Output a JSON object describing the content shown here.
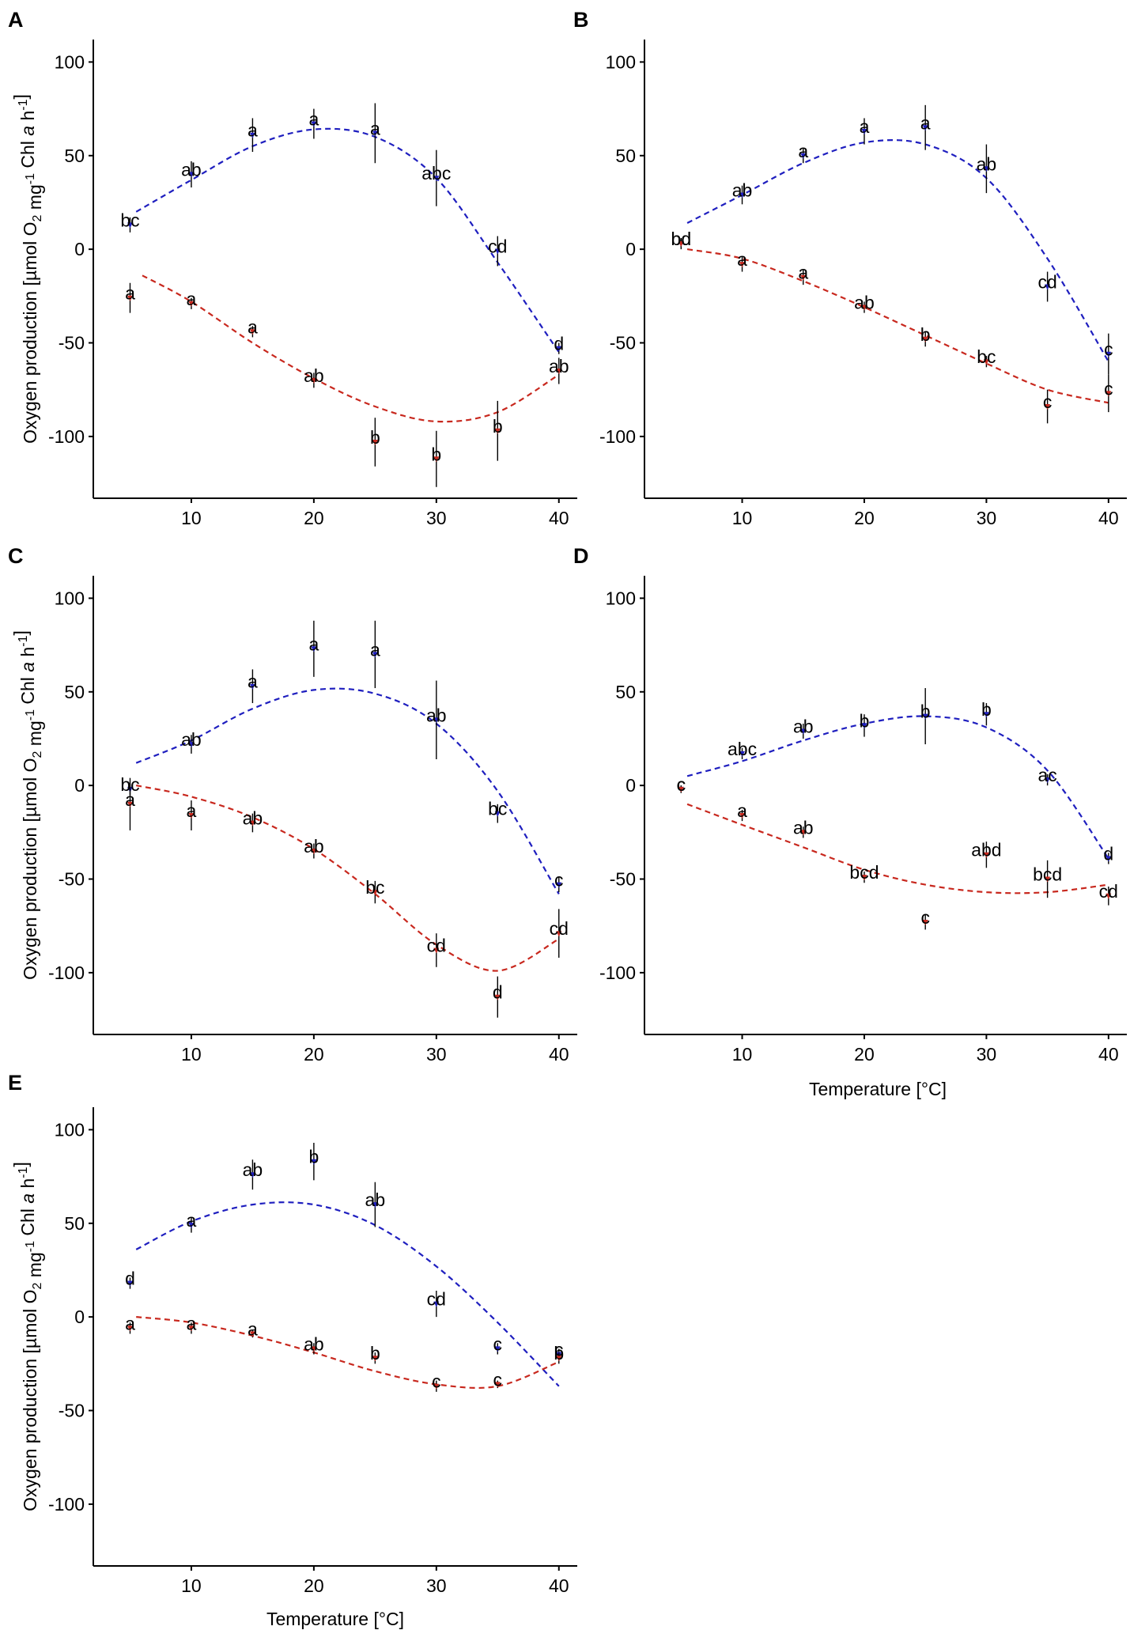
{
  "figure": {
    "x_axis_title": "Temperature [°C]",
    "y_axis_title_parts": {
      "prefix": "Oxygen production [µmol O",
      "o2_subscript": "2",
      "mid": " mg",
      "mg_superscript": "-1",
      "chl": " Chl ",
      "a_italic": "a",
      "h": " h",
      "h_superscript": "-1",
      "suffix": "]"
    },
    "colors": {
      "gross": "#1f1fbf",
      "respiration": "#c8281e",
      "axis": "#000000",
      "errorbar": "#000000"
    }
  },
  "chart_data": [
    {
      "panel": "A",
      "type": "scatter",
      "x_ticks": [
        10,
        20,
        30,
        40
      ],
      "y_ticks": [
        100,
        50,
        0,
        -50,
        -100
      ],
      "xlim": [
        2,
        41.5
      ],
      "ylim": [
        -133,
        112
      ],
      "show_y_title": true,
      "show_x_title": false,
      "series": [
        {
          "name": "upper",
          "color": "#1f1fbf",
          "points": [
            {
              "x": 5,
              "y": 13,
              "err": 4,
              "label": "bc"
            },
            {
              "x": 10,
              "y": 40,
              "err": 7,
              "label": "ab"
            },
            {
              "x": 15,
              "y": 61,
              "err": 9,
              "label": "a"
            },
            {
              "x": 20,
              "y": 67,
              "err": 8,
              "label": "a"
            },
            {
              "x": 25,
              "y": 62,
              "err": 16,
              "label": "a"
            },
            {
              "x": 30,
              "y": 38,
              "err": 15,
              "label": "abc"
            },
            {
              "x": 35,
              "y": -1,
              "err": 8,
              "label": "cd"
            },
            {
              "x": 40,
              "y": -53,
              "err": 3,
              "label": "d"
            }
          ],
          "fit": [
            [
              5.5,
              20
            ],
            [
              10,
              37
            ],
            [
              15,
              55
            ],
            [
              20,
              64
            ],
            [
              25,
              60
            ],
            [
              30,
              38
            ],
            [
              35,
              -7
            ],
            [
              40,
              -55
            ]
          ]
        },
        {
          "name": "lower",
          "color": "#c8281e",
          "points": [
            {
              "x": 5,
              "y": -26,
              "err": 8,
              "label": "a"
            },
            {
              "x": 10,
              "y": -29,
              "err": 3,
              "label": "a"
            },
            {
              "x": 15,
              "y": -44,
              "err": 3,
              "label": "a"
            },
            {
              "x": 20,
              "y": -70,
              "err": 4,
              "label": "ab"
            },
            {
              "x": 25,
              "y": -103,
              "err": 13,
              "label": "b"
            },
            {
              "x": 30,
              "y": -112,
              "err": 15,
              "label": "b"
            },
            {
              "x": 35,
              "y": -97,
              "err": 16,
              "label": "b"
            },
            {
              "x": 40,
              "y": -65,
              "err": 7,
              "label": "ab"
            }
          ],
          "fit": [
            [
              6,
              -14
            ],
            [
              10,
              -28
            ],
            [
              15,
              -50
            ],
            [
              20,
              -69
            ],
            [
              25,
              -84
            ],
            [
              30,
              -92
            ],
            [
              35,
              -87
            ],
            [
              40,
              -67
            ]
          ]
        }
      ]
    },
    {
      "panel": "B",
      "type": "scatter",
      "x_ticks": [
        10,
        20,
        30,
        40
      ],
      "y_ticks": [
        100,
        50,
        0,
        -50,
        -100
      ],
      "xlim": [
        2,
        41.5
      ],
      "ylim": [
        -133,
        112
      ],
      "show_y_title": false,
      "show_x_title": false,
      "series": [
        {
          "name": "upper",
          "color": "#1f1fbf",
          "points": [
            {
              "x": 5,
              "y": 3,
              "err": 3,
              "label": "bd"
            },
            {
              "x": 10,
              "y": 29,
              "err": 5,
              "label": "ab"
            },
            {
              "x": 15,
              "y": 50,
              "err": 4,
              "label": "a"
            },
            {
              "x": 20,
              "y": 63,
              "err": 7,
              "label": "a"
            },
            {
              "x": 25,
              "y": 65,
              "err": 12,
              "label": "a"
            },
            {
              "x": 30,
              "y": 43,
              "err": 13,
              "label": "ab"
            },
            {
              "x": 35,
              "y": -20,
              "err": 8,
              "label": "cd"
            },
            {
              "x": 40,
              "y": -56,
              "err": 11,
              "label": "c"
            }
          ],
          "fit": [
            [
              5.5,
              14
            ],
            [
              10,
              29
            ],
            [
              15,
              46
            ],
            [
              20,
              57
            ],
            [
              25,
              56
            ],
            [
              30,
              38
            ],
            [
              35,
              -5
            ],
            [
              40,
              -60
            ]
          ]
        },
        {
          "name": "lower",
          "color": "#c8281e",
          "points": [
            {
              "x": 5,
              "y": 3,
              "err": 2,
              "label": "bd"
            },
            {
              "x": 10,
              "y": -8,
              "err": 4,
              "label": "a"
            },
            {
              "x": 15,
              "y": -15,
              "err": 4,
              "label": "a"
            },
            {
              "x": 20,
              "y": -31,
              "err": 3,
              "label": "ab"
            },
            {
              "x": 25,
              "y": -48,
              "err": 4,
              "label": "b"
            },
            {
              "x": 30,
              "y": -60,
              "err": 3,
              "label": "bc"
            },
            {
              "x": 35,
              "y": -84,
              "err": 9,
              "label": "c"
            },
            {
              "x": 40,
              "y": -77,
              "err": 10,
              "label": "c"
            }
          ],
          "fit": [
            [
              5.5,
              0
            ],
            [
              10,
              -5
            ],
            [
              15,
              -17
            ],
            [
              20,
              -31
            ],
            [
              25,
              -46
            ],
            [
              30,
              -61
            ],
            [
              35,
              -75
            ],
            [
              40,
              -82
            ]
          ]
        }
      ]
    },
    {
      "panel": "C",
      "type": "scatter",
      "x_ticks": [
        10,
        20,
        30,
        40
      ],
      "y_ticks": [
        100,
        50,
        0,
        -50,
        -100
      ],
      "xlim": [
        2,
        41.5
      ],
      "ylim": [
        -133,
        112
      ],
      "show_y_title": true,
      "show_x_title": false,
      "series": [
        {
          "name": "upper",
          "color": "#1f1fbf",
          "points": [
            {
              "x": 5,
              "y": -2,
              "err": 3,
              "label": "bc"
            },
            {
              "x": 10,
              "y": 22,
              "err": 5,
              "label": "ab"
            },
            {
              "x": 15,
              "y": 53,
              "err": 9,
              "label": "a"
            },
            {
              "x": 20,
              "y": 73,
              "err": 15,
              "label": "a"
            },
            {
              "x": 25,
              "y": 70,
              "err": 18,
              "label": "a"
            },
            {
              "x": 30,
              "y": 35,
              "err": 21,
              "label": "ab"
            },
            {
              "x": 35,
              "y": -15,
              "err": 5,
              "label": "bc"
            },
            {
              "x": 40,
              "y": -53,
              "err": 4,
              "label": "c"
            }
          ],
          "fit": [
            [
              5.5,
              12
            ],
            [
              10,
              24
            ],
            [
              15,
              41
            ],
            [
              20,
              51
            ],
            [
              25,
              49
            ],
            [
              30,
              33
            ],
            [
              35,
              -3
            ],
            [
              40,
              -58
            ]
          ]
        },
        {
          "name": "lower",
          "color": "#c8281e",
          "points": [
            {
              "x": 5,
              "y": -10,
              "err": 14,
              "label": "a"
            },
            {
              "x": 10,
              "y": -16,
              "err": 8,
              "label": "a"
            },
            {
              "x": 15,
              "y": -20,
              "err": 5,
              "label": "ab"
            },
            {
              "x": 20,
              "y": -35,
              "err": 4,
              "label": "ab"
            },
            {
              "x": 25,
              "y": -57,
              "err": 6,
              "label": "bc"
            },
            {
              "x": 30,
              "y": -88,
              "err": 9,
              "label": "cd"
            },
            {
              "x": 35,
              "y": -113,
              "err": 11,
              "label": "d"
            },
            {
              "x": 40,
              "y": -79,
              "err": 13,
              "label": "cd"
            }
          ],
          "fit": [
            [
              5.5,
              0
            ],
            [
              10,
              -6
            ],
            [
              15,
              -17
            ],
            [
              20,
              -34
            ],
            [
              25,
              -58
            ],
            [
              30,
              -85
            ],
            [
              35,
              -99
            ],
            [
              40,
              -82
            ]
          ]
        }
      ]
    },
    {
      "panel": "D",
      "type": "scatter",
      "x_ticks": [
        10,
        20,
        30,
        40
      ],
      "y_ticks": [
        100,
        50,
        0,
        -50,
        -100
      ],
      "xlim": [
        2,
        41.5
      ],
      "ylim": [
        -133,
        112
      ],
      "show_y_title": false,
      "show_x_title": true,
      "series": [
        {
          "name": "upper",
          "color": "#1f1fbf",
          "points": [
            {
              "x": 5,
              "y": -2,
              "err": 2,
              "label": "c"
            },
            {
              "x": 10,
              "y": 17,
              "err": 3,
              "label": "abc"
            },
            {
              "x": 15,
              "y": 29,
              "err": 4,
              "label": "ab"
            },
            {
              "x": 20,
              "y": 32,
              "err": 6,
              "label": "b"
            },
            {
              "x": 25,
              "y": 37,
              "err": 15,
              "label": "b"
            },
            {
              "x": 30,
              "y": 38,
              "err": 6,
              "label": "b"
            },
            {
              "x": 35,
              "y": 3,
              "err": 3,
              "label": "ac"
            },
            {
              "x": 40,
              "y": -39,
              "err": 3,
              "label": "d"
            }
          ],
          "fit": [
            [
              5.5,
              5
            ],
            [
              10,
              13
            ],
            [
              15,
              24
            ],
            [
              20,
              33
            ],
            [
              25,
              37
            ],
            [
              30,
              31
            ],
            [
              35,
              8
            ],
            [
              40,
              -39
            ]
          ]
        },
        {
          "name": "lower",
          "color": "#c8281e",
          "points": [
            {
              "x": 5,
              "y": -2,
              "err": 2,
              "label": "c"
            },
            {
              "x": 10,
              "y": -16,
              "err": 3,
              "label": "a"
            },
            {
              "x": 15,
              "y": -25,
              "err": 3,
              "label": "ab"
            },
            {
              "x": 20,
              "y": -49,
              "err": 3,
              "label": "bcd"
            },
            {
              "x": 25,
              "y": -73,
              "err": 4,
              "label": "c"
            },
            {
              "x": 30,
              "y": -37,
              "err": 7,
              "label": "abd"
            },
            {
              "x": 35,
              "y": -50,
              "err": 10,
              "label": "bcd"
            },
            {
              "x": 40,
              "y": -59,
              "err": 5,
              "label": "cd"
            }
          ],
          "fit": [
            [
              5.5,
              -10
            ],
            [
              10,
              -21
            ],
            [
              15,
              -33
            ],
            [
              20,
              -45
            ],
            [
              25,
              -53
            ],
            [
              30,
              -57
            ],
            [
              35,
              -57
            ],
            [
              40,
              -53
            ]
          ]
        }
      ]
    },
    {
      "panel": "E",
      "type": "scatter",
      "x_ticks": [
        10,
        20,
        30,
        40
      ],
      "y_ticks": [
        100,
        50,
        0,
        -50,
        -100
      ],
      "xlim": [
        2,
        41.5
      ],
      "ylim": [
        -133,
        112
      ],
      "show_y_title": true,
      "show_x_title": true,
      "series": [
        {
          "name": "upper",
          "color": "#1f1fbf",
          "points": [
            {
              "x": 5,
              "y": 18,
              "err": 3,
              "label": "d"
            },
            {
              "x": 10,
              "y": 49,
              "err": 4,
              "label": "a"
            },
            {
              "x": 15,
              "y": 76,
              "err": 8,
              "label": "ab"
            },
            {
              "x": 20,
              "y": 83,
              "err": 10,
              "label": "b"
            },
            {
              "x": 25,
              "y": 60,
              "err": 12,
              "label": "ab"
            },
            {
              "x": 30,
              "y": 7,
              "err": 7,
              "label": "cd"
            },
            {
              "x": 35,
              "y": -17,
              "err": 3,
              "label": "c"
            },
            {
              "x": 40,
              "y": -20,
              "err": 3,
              "label": "c"
            }
          ],
          "fit": [
            [
              5.5,
              36
            ],
            [
              10,
              51
            ],
            [
              15,
              60
            ],
            [
              20,
              60
            ],
            [
              25,
              49
            ],
            [
              30,
              27
            ],
            [
              35,
              -3
            ],
            [
              40,
              -37
            ]
          ]
        },
        {
          "name": "lower",
          "color": "#c8281e",
          "points": [
            {
              "x": 5,
              "y": -6,
              "err": 3,
              "label": "a"
            },
            {
              "x": 10,
              "y": -6,
              "err": 3,
              "label": "a"
            },
            {
              "x": 15,
              "y": -9,
              "err": 2,
              "label": "a"
            },
            {
              "x": 20,
              "y": -17,
              "err": 3,
              "label": "ab"
            },
            {
              "x": 25,
              "y": -22,
              "err": 3,
              "label": "b"
            },
            {
              "x": 30,
              "y": -37,
              "err": 3,
              "label": "c"
            },
            {
              "x": 35,
              "y": -36,
              "err": 2,
              "label": "c"
            },
            {
              "x": 40,
              "y": -22,
              "err": 3,
              "label": "b"
            }
          ],
          "fit": [
            [
              5.5,
              0
            ],
            [
              10,
              -3
            ],
            [
              15,
              -10
            ],
            [
              20,
              -19
            ],
            [
              25,
              -29
            ],
            [
              30,
              -36
            ],
            [
              35,
              -37
            ],
            [
              40,
              -24
            ]
          ]
        }
      ]
    }
  ]
}
